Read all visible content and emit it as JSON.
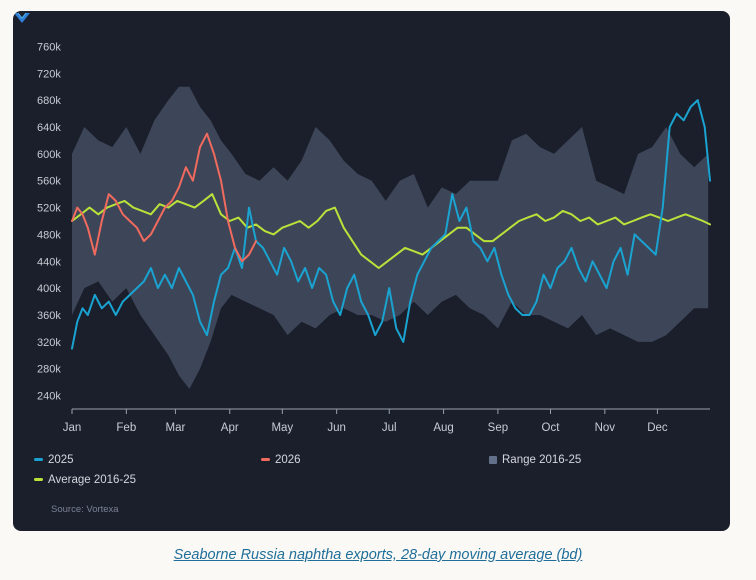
{
  "caption": "Seaborne Russia naphtha exports, 28-day moving average (bd)",
  "source": "Source: Vortexa",
  "colors": {
    "background": "#1b1f2b",
    "s2025": "#1aa3d1",
    "s2026": "#f06a5e",
    "average": "#b9e23a",
    "range": "#4a5468"
  },
  "chart_data": {
    "type": "line",
    "title": "",
    "xlabel": "",
    "ylabel": "",
    "x_unit": "day of year",
    "ylim": [
      220,
      780
    ],
    "y_ticks": [
      "240k",
      "280k",
      "320k",
      "360k",
      "400k",
      "440k",
      "480k",
      "520k",
      "560k",
      "600k",
      "640k",
      "680k",
      "720k",
      "760k"
    ],
    "y_tick_values": [
      240,
      280,
      320,
      360,
      400,
      440,
      480,
      520,
      560,
      600,
      640,
      680,
      720,
      760
    ],
    "x_ticks": [
      "Jan",
      "Feb",
      "Mar",
      "Apr",
      "May",
      "Jun",
      "Jul",
      "Aug",
      "Sep",
      "Oct",
      "Nov",
      "Dec"
    ],
    "x_tick_days": [
      1,
      32,
      60,
      91,
      121,
      152,
      182,
      213,
      244,
      274,
      305,
      335
    ],
    "grid": false,
    "legend_position": "bottom",
    "legend": [
      "2025",
      "2026",
      "Range 2016-25",
      "Average 2016-25"
    ],
    "range": {
      "name": "Range 2016-25",
      "x": [
        1,
        8,
        16,
        24,
        32,
        40,
        48,
        56,
        62,
        68,
        74,
        80,
        86,
        92,
        100,
        108,
        116,
        124,
        132,
        140,
        148,
        156,
        164,
        172,
        180,
        188,
        196,
        204,
        212,
        220,
        228,
        236,
        244,
        252,
        260,
        268,
        276,
        284,
        292,
        300,
        308,
        316,
        324,
        332,
        340,
        348,
        356,
        364
      ],
      "high": [
        600,
        640,
        620,
        610,
        640,
        600,
        650,
        680,
        700,
        700,
        670,
        650,
        620,
        600,
        570,
        560,
        580,
        560,
        590,
        640,
        620,
        590,
        570,
        560,
        530,
        560,
        570,
        520,
        550,
        540,
        560,
        560,
        560,
        620,
        630,
        610,
        600,
        620,
        640,
        560,
        550,
        540,
        600,
        610,
        640,
        600,
        580,
        600
      ],
      "low": [
        360,
        400,
        410,
        380,
        400,
        360,
        330,
        300,
        270,
        250,
        280,
        320,
        370,
        390,
        380,
        370,
        360,
        330,
        350,
        340,
        360,
        370,
        360,
        360,
        350,
        360,
        380,
        360,
        380,
        390,
        370,
        360,
        340,
        380,
        360,
        360,
        350,
        340,
        360,
        330,
        340,
        330,
        320,
        320,
        330,
        350,
        370,
        370
      ]
    },
    "series": [
      {
        "name": "2025",
        "x": [
          1,
          4,
          7,
          10,
          14,
          18,
          22,
          26,
          30,
          34,
          38,
          42,
          46,
          50,
          54,
          58,
          62,
          66,
          70,
          74,
          78,
          82,
          86,
          90,
          94,
          98,
          102,
          106,
          110,
          114,
          118,
          122,
          126,
          130,
          134,
          138,
          142,
          146,
          150,
          154,
          158,
          162,
          166,
          170,
          174,
          178,
          182,
          186,
          190,
          194,
          198,
          202,
          206,
          210,
          214,
          218,
          222,
          226,
          230,
          234,
          238,
          242,
          246,
          250,
          254,
          258,
          262,
          266,
          270,
          274,
          278,
          282,
          286,
          290,
          294,
          298,
          302,
          306,
          310,
          314,
          318,
          322,
          326,
          330,
          334,
          338,
          342,
          346,
          350,
          354,
          358,
          362,
          365
        ],
        "values": [
          310,
          350,
          370,
          360,
          390,
          370,
          380,
          360,
          380,
          390,
          400,
          410,
          430,
          400,
          420,
          400,
          430,
          410,
          390,
          350,
          330,
          380,
          420,
          430,
          460,
          430,
          520,
          470,
          460,
          440,
          420,
          460,
          440,
          410,
          430,
          400,
          430,
          420,
          380,
          360,
          400,
          420,
          380,
          360,
          330,
          350,
          400,
          340,
          320,
          380,
          420,
          440,
          460,
          470,
          480,
          540,
          500,
          520,
          470,
          460,
          440,
          460,
          420,
          390,
          370,
          360,
          360,
          380,
          420,
          400,
          430,
          440,
          460,
          430,
          410,
          440,
          420,
          400,
          440,
          460,
          420,
          480,
          470,
          460,
          450,
          520,
          640,
          660,
          650,
          670,
          680,
          640,
          560
        ]
      },
      {
        "name": "2026",
        "x": [
          1,
          4,
          7,
          10,
          14,
          18,
          22,
          26,
          30,
          34,
          38,
          42,
          46,
          50,
          54,
          58,
          62,
          66,
          70,
          74,
          78,
          82,
          86,
          90,
          94,
          98,
          102,
          106
        ],
        "values": [
          500,
          520,
          510,
          490,
          450,
          500,
          540,
          530,
          510,
          500,
          490,
          470,
          480,
          500,
          520,
          530,
          550,
          580,
          560,
          610,
          630,
          600,
          560,
          500,
          460,
          440,
          450,
          470
        ]
      },
      {
        "name": "Average 2016-25",
        "x": [
          1,
          6,
          11,
          16,
          21,
          26,
          31,
          36,
          41,
          46,
          51,
          56,
          61,
          66,
          71,
          76,
          81,
          86,
          91,
          96,
          101,
          106,
          111,
          116,
          121,
          126,
          131,
          136,
          141,
          146,
          151,
          156,
          161,
          166,
          171,
          176,
          181,
          186,
          191,
          196,
          201,
          206,
          211,
          216,
          221,
          226,
          231,
          236,
          241,
          246,
          251,
          256,
          261,
          266,
          271,
          276,
          281,
          286,
          291,
          296,
          301,
          306,
          311,
          316,
          321,
          326,
          331,
          336,
          341,
          346,
          351,
          356,
          361,
          365
        ],
        "values": [
          500,
          510,
          520,
          510,
          520,
          525,
          530,
          520,
          515,
          510,
          525,
          520,
          530,
          525,
          520,
          530,
          540,
          510,
          500,
          505,
          490,
          495,
          485,
          480,
          490,
          495,
          500,
          490,
          500,
          515,
          520,
          490,
          470,
          450,
          440,
          430,
          440,
          450,
          460,
          455,
          450,
          460,
          470,
          480,
          490,
          490,
          480,
          470,
          470,
          480,
          490,
          500,
          505,
          510,
          500,
          505,
          515,
          510,
          500,
          505,
          495,
          500,
          505,
          495,
          500,
          505,
          510,
          505,
          500,
          505,
          510,
          505,
          500,
          495
        ]
      }
    ]
  }
}
